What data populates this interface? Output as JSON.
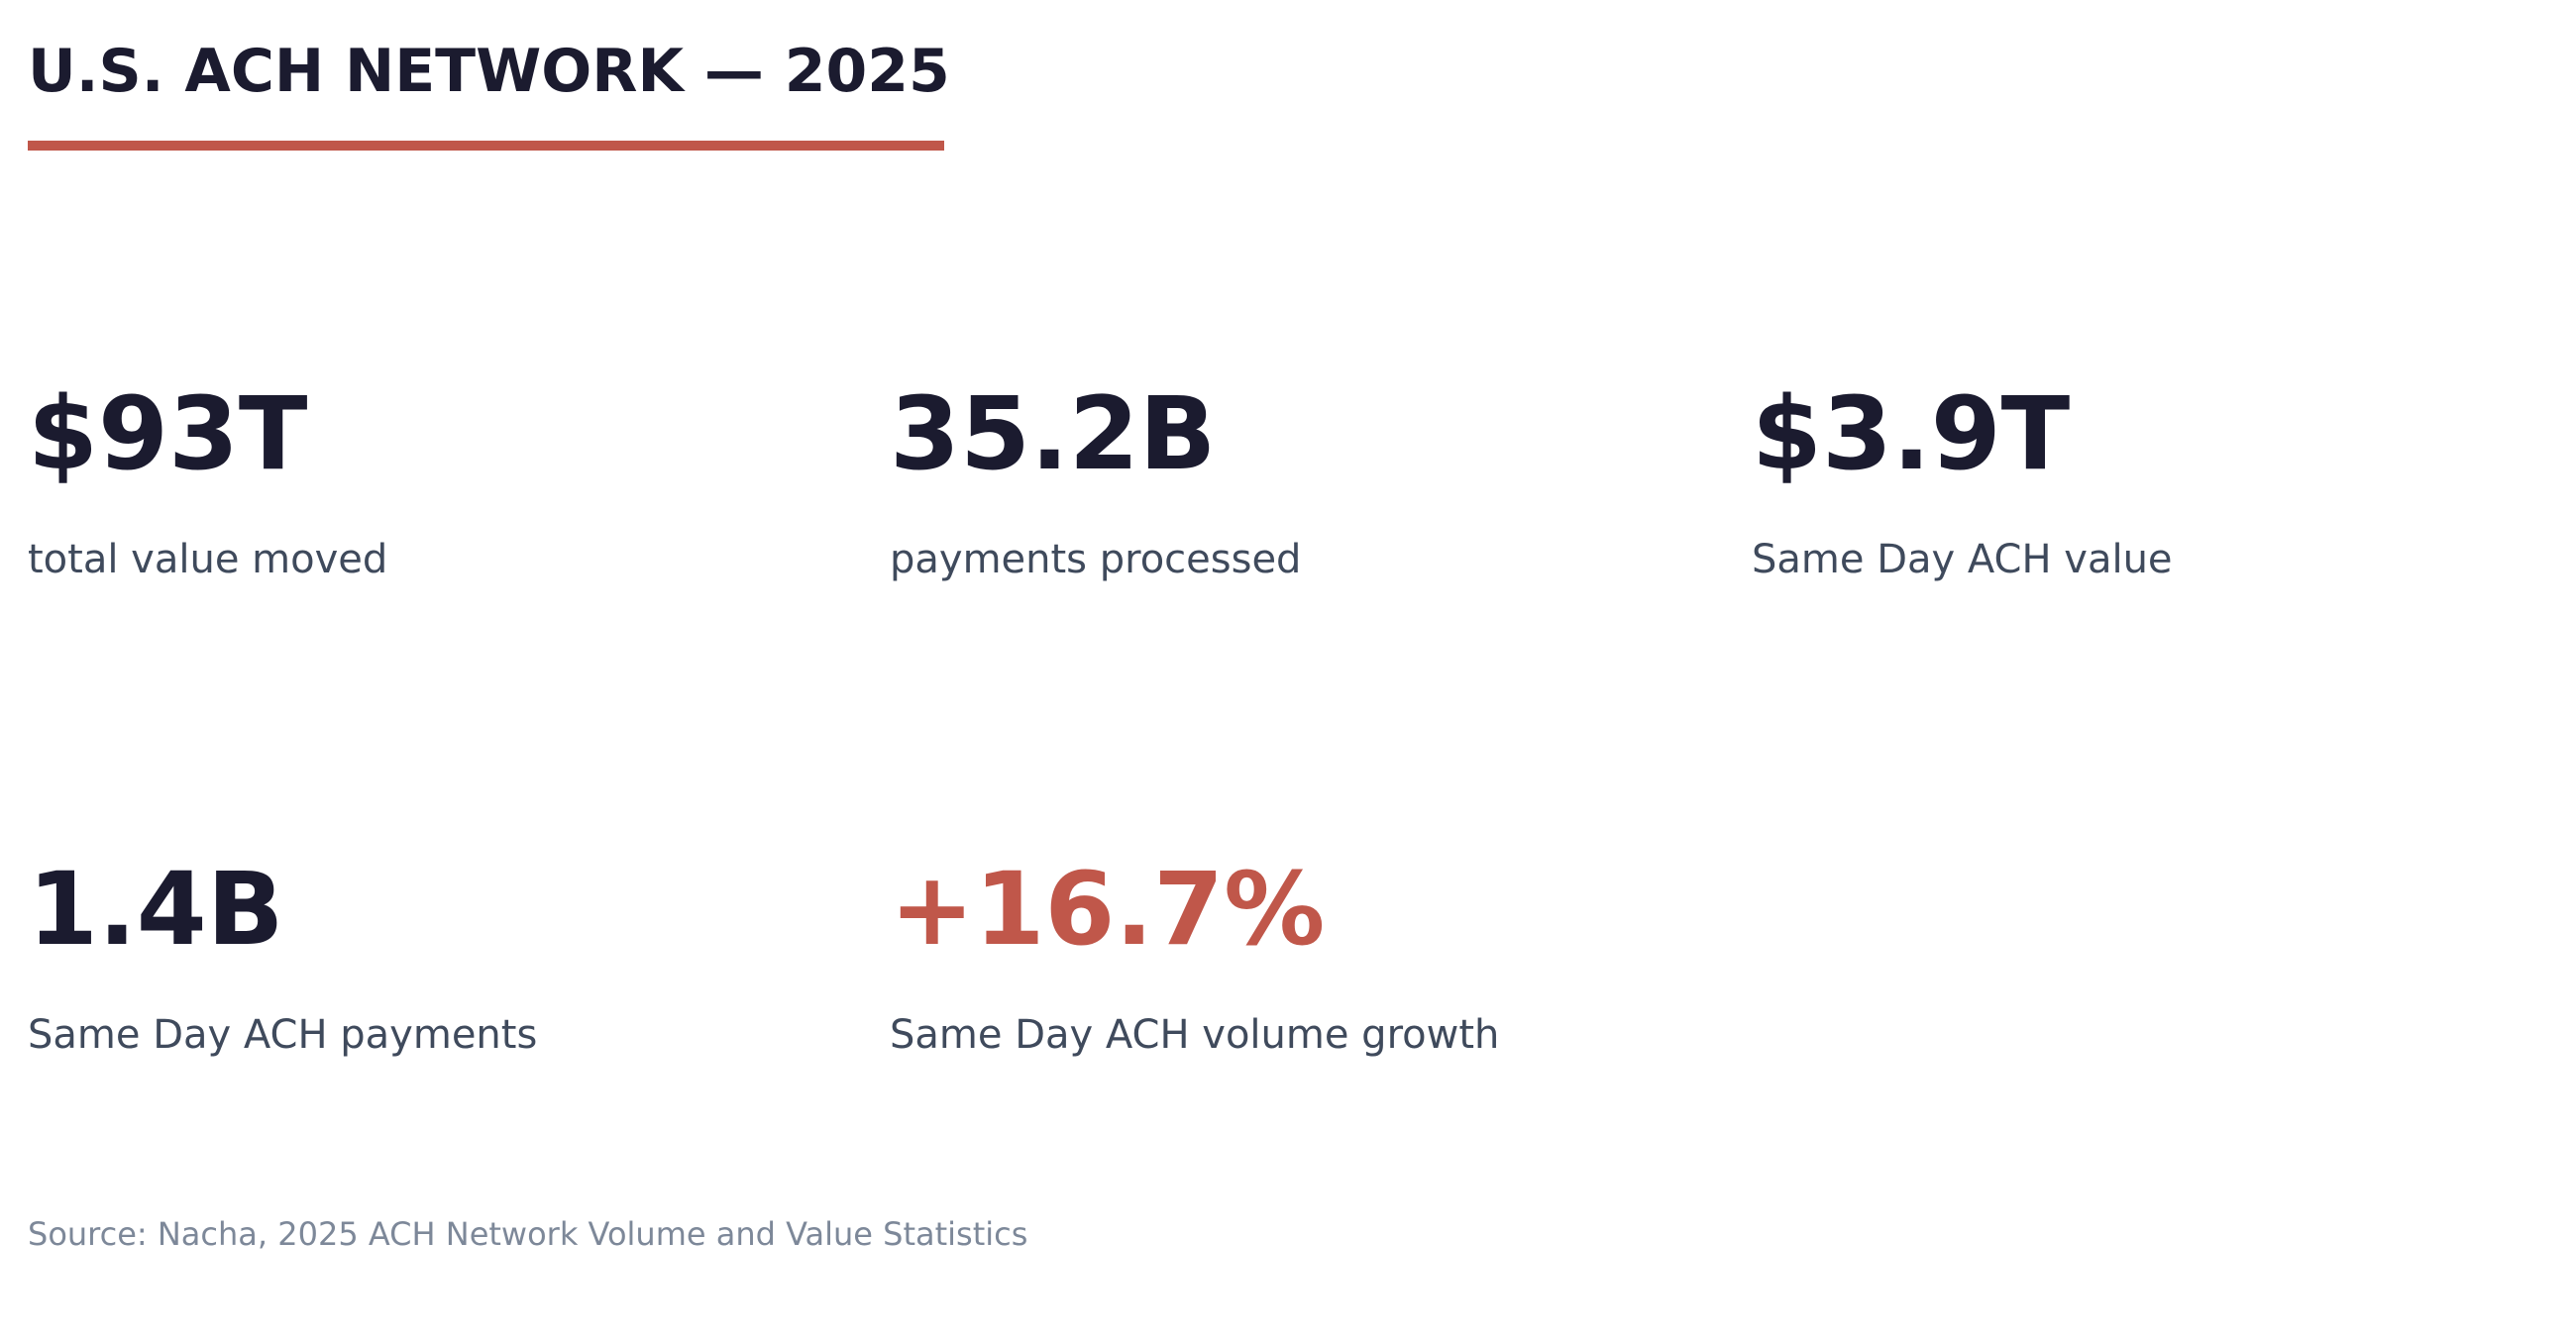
{
  "header": {
    "title": "U.S. ACH NETWORK — 2025"
  },
  "colors": {
    "text_dark": "#1b1b2f",
    "text_label": "#3f4a5c",
    "text_muted": "#7d8899",
    "accent": "#c0574a"
  },
  "stats": [
    {
      "value": "$93T",
      "label": "total value moved"
    },
    {
      "value": "35.2B",
      "label": "payments processed"
    },
    {
      "value": "$3.9T",
      "label": "Same Day ACH value"
    },
    {
      "value": "1.4B",
      "label": "Same Day ACH payments"
    },
    {
      "value": "+16.7%",
      "label": "Same Day ACH volume growth"
    }
  ],
  "footer": {
    "source": "Source: Nacha, 2025 ACH Network Volume and Value Statistics"
  }
}
